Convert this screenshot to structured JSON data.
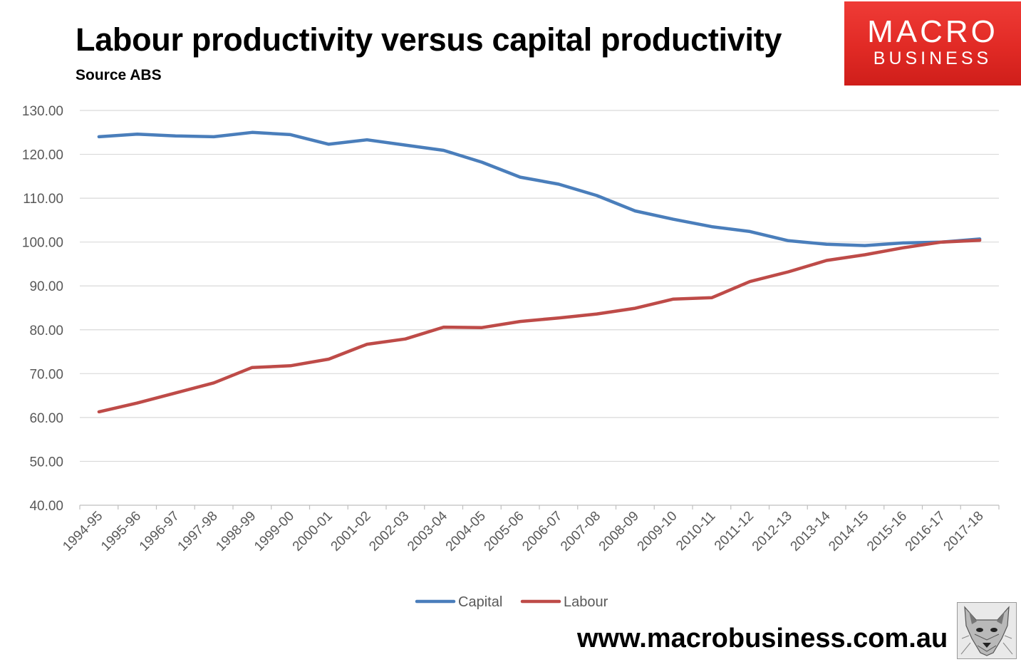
{
  "chart_data": {
    "type": "line",
    "title": "Labour productivity versus capital productivity",
    "subtitle": "Source ABS",
    "xlabel": "",
    "ylabel": "",
    "ylim": [
      40,
      130
    ],
    "yticks": [
      "40.00",
      "50.00",
      "60.00",
      "70.00",
      "80.00",
      "90.00",
      "100.00",
      "110.00",
      "120.00",
      "130.00"
    ],
    "grid": true,
    "legend_position": "bottom",
    "categories": [
      "1994-95",
      "1995-96",
      "1996-97",
      "1997-98",
      "1998-99",
      "1999-00",
      "2000-01",
      "2001-02",
      "2002-03",
      "2003-04",
      "2004-05",
      "2005-06",
      "2006-07",
      "2007-08",
      "2008-09",
      "2009-10",
      "2010-11",
      "2011-12",
      "2012-13",
      "2013-14",
      "2014-15",
      "2015-16",
      "2016-17",
      "2017-18"
    ],
    "series": [
      {
        "name": "Capital",
        "color": "#4a7ebb",
        "values": [
          124.0,
          124.6,
          124.2,
          124.0,
          125.0,
          124.5,
          122.3,
          123.3,
          122.1,
          120.9,
          118.2,
          114.8,
          113.2,
          110.6,
          107.1,
          105.2,
          103.5,
          102.4,
          100.3,
          99.5,
          99.2,
          99.8,
          100.0,
          100.7
        ]
      },
      {
        "name": "Labour",
        "color": "#be4b48",
        "values": [
          61.3,
          63.3,
          65.6,
          67.9,
          71.4,
          71.8,
          73.3,
          76.7,
          77.9,
          80.6,
          80.5,
          81.9,
          82.7,
          83.6,
          84.9,
          87.0,
          87.3,
          91.0,
          93.2,
          95.8,
          97.1,
          98.7,
          100.0,
          100.4
        ]
      }
    ]
  },
  "branding": {
    "logo_line1": "MACRO",
    "logo_line2": "BUSINESS",
    "logo_color": "#e12a25",
    "url": "www.macrobusiness.com.au"
  }
}
